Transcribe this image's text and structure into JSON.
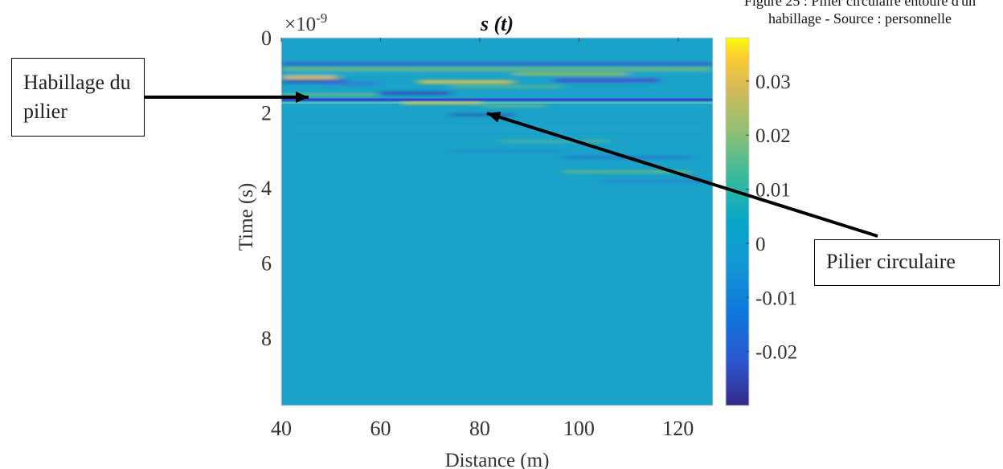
{
  "caption": {
    "line1": "Figure 25 : Pilier circulaire entouré d'un",
    "line2": "habillage - Source : personnelle"
  },
  "callouts": {
    "habillage": "Habillage du pilier",
    "pilier": "Pilier circulaire"
  },
  "chart_data": {
    "type": "heatmap",
    "title": "s (t)",
    "xlabel": "Distance (m)",
    "ylabel": "Time (s)",
    "y_exponent_label": "×10",
    "y_exponent_power": "-9",
    "xlim": [
      40,
      127
    ],
    "ylim": [
      0,
      9.8e-09
    ],
    "y_reversed": true,
    "x_ticks": [
      40,
      60,
      80,
      100,
      120
    ],
    "x_tick_labels": [
      "40",
      "60",
      "80",
      "100",
      "120"
    ],
    "y_ticks": [
      0,
      2e-09,
      4e-09,
      6e-09,
      8e-09
    ],
    "y_tick_labels": [
      "0",
      "2",
      "4",
      "6",
      "8"
    ],
    "colorbar": {
      "min": -0.03,
      "max": 0.038,
      "ticks": [
        0.03,
        0.02,
        0.01,
        0,
        -0.01,
        -0.02
      ],
      "tick_labels": [
        "0.03",
        "0.02",
        "0.01",
        "0",
        "-0.01",
        "-0.02"
      ],
      "colormap": "parula"
    },
    "features": [
      {
        "name": "Habillage du pilier",
        "type": "horizontal reflection",
        "time": 1.65e-09,
        "value": -0.028
      },
      {
        "name": "Pilier circulaire",
        "type": "hyperbolic reflection",
        "apex_distance": 82,
        "apex_time": 2e-09,
        "value": 0.03
      }
    ],
    "grid": false,
    "legend": "colorbar right"
  },
  "colors": {
    "background_field": "#1aa2c9",
    "annotation": "#000000"
  }
}
